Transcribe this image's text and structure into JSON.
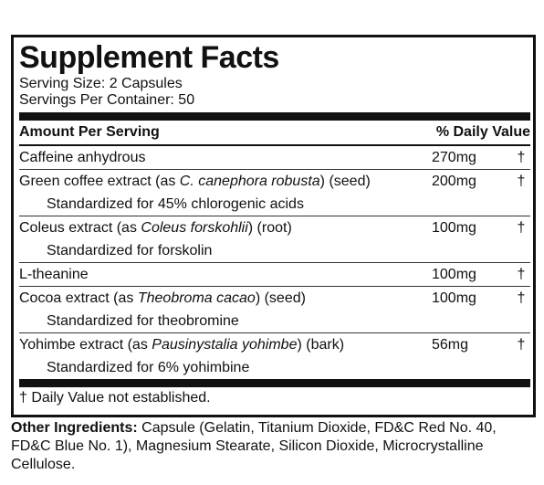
{
  "panel": {
    "title": "Supplement Facts",
    "serving_size": "Serving Size: 2 Capsules",
    "servings_per_container": "Servings Per Container: 50",
    "header": {
      "amount": "Amount Per Serving",
      "daily_value": "% Daily Value"
    },
    "rows": [
      {
        "name": "Caffeine anhydrous",
        "amount": "270mg",
        "dv": "†"
      },
      {
        "name": "Green coffee extract (as",
        "source": "C. canephora robusta",
        "part": ") (seed)",
        "amount": "200mg",
        "dv": "†",
        "note": "Standardized for 45% chlorogenic acids"
      },
      {
        "name": "Coleus extract (as",
        "source": "Coleus forskohlii",
        "part": ") (root)",
        "amount": "100mg",
        "dv": "†",
        "note": "Standardized for forskolin"
      },
      {
        "name": "L-theanine",
        "amount": "100mg",
        "dv": "†"
      },
      {
        "name": "Cocoa extract (as",
        "source": "Theobroma cacao",
        "part": ") (seed)",
        "amount": "100mg",
        "dv": "†",
        "note": "Standardized for theobromine"
      },
      {
        "name": "Yohimbe extract (as",
        "source": "Pausinystalia yohimbe",
        "part": ") (bark)",
        "amount": "56mg",
        "dv": "†",
        "note": "Standardized for 6% yohimbine"
      }
    ],
    "footnote": "† Daily Value not established."
  },
  "other_ingredients": {
    "label": "Other Ingredients:",
    "text": "Capsule (Gelatin, Titanium Dioxide, FD&C Red No. 40, FD&C Blue No. 1), Magnesium Stearate, Silicon Dioxide, Microcrystalline Cellulose."
  }
}
